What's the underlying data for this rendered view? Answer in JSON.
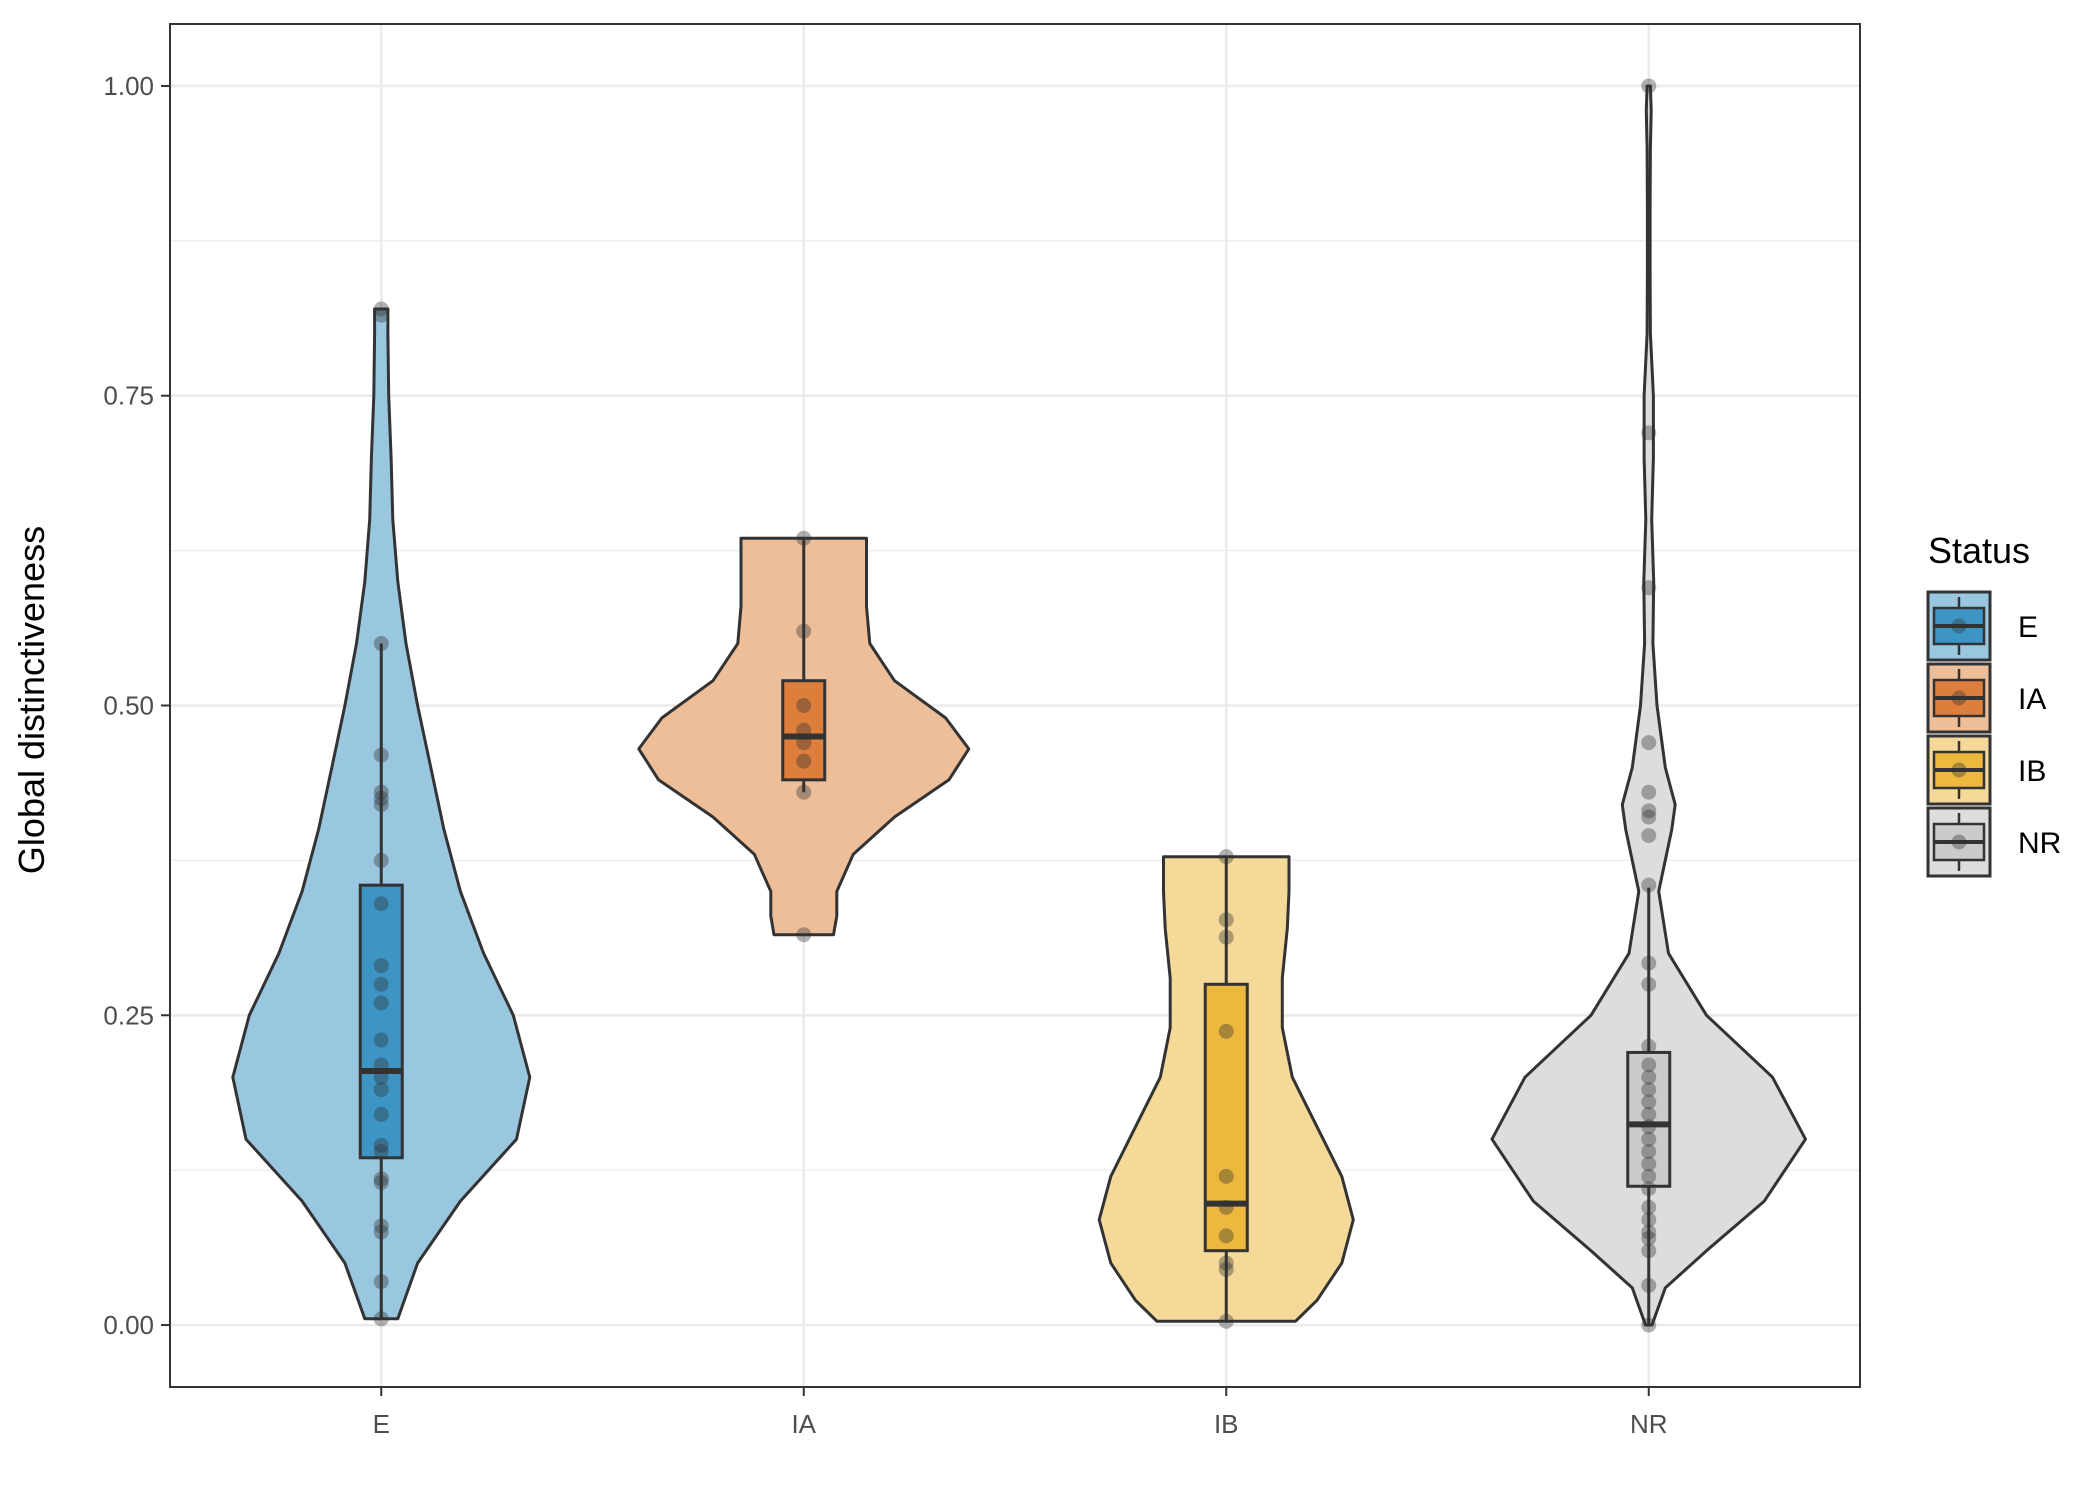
{
  "chart_data": {
    "type": "violin",
    "title": "",
    "xlabel": "",
    "ylabel": "Global distinctiveness",
    "ylim": [
      -0.05,
      1.05
    ],
    "y_ticks": [
      0.0,
      0.25,
      0.5,
      0.75,
      1.0
    ],
    "y_tick_labels": [
      "0.00",
      "0.25",
      "0.50",
      "0.75",
      "1.00"
    ],
    "categories": [
      "E",
      "IA",
      "IB",
      "NR"
    ],
    "grid": true,
    "legend": {
      "title": "Status",
      "placement": "right",
      "entries": [
        "E",
        "IA",
        "IB",
        "NR"
      ]
    },
    "colors": {
      "E": "#0072B2",
      "IA": "#D55E00",
      "IB": "#E69F00",
      "NR": "#999999"
    },
    "violin_fill": {
      "E": "#99C7E0",
      "IA": "#EEBE99",
      "IB": "#F5D999",
      "NR": "#DDDDDD"
    },
    "box_fill": {
      "E": "#3D95C6",
      "IA": "#DE7E3D",
      "IB": "#ECB83D",
      "NR": "#CBCBCB"
    },
    "series": [
      {
        "category": "E",
        "box": {
          "min": 0.005,
          "q1": 0.135,
          "median": 0.205,
          "q3": 0.355,
          "max": 0.55
        },
        "points": [
          0.005,
          0.035,
          0.075,
          0.08,
          0.115,
          0.118,
          0.14,
          0.145,
          0.17,
          0.19,
          0.2,
          0.21,
          0.23,
          0.26,
          0.275,
          0.29,
          0.34,
          0.375,
          0.42,
          0.425,
          0.43,
          0.46,
          0.55,
          0.815,
          0.82
        ],
        "violin": [
          [
            0.005,
            0.1
          ],
          [
            0.05,
            0.22
          ],
          [
            0.1,
            0.48
          ],
          [
            0.15,
            0.82
          ],
          [
            0.2,
            0.9
          ],
          [
            0.25,
            0.8
          ],
          [
            0.3,
            0.62
          ],
          [
            0.35,
            0.48
          ],
          [
            0.4,
            0.38
          ],
          [
            0.45,
            0.3
          ],
          [
            0.5,
            0.22
          ],
          [
            0.55,
            0.15
          ],
          [
            0.6,
            0.1
          ],
          [
            0.65,
            0.07
          ],
          [
            0.7,
            0.06
          ],
          [
            0.75,
            0.045
          ],
          [
            0.8,
            0.04
          ],
          [
            0.82,
            0.04
          ]
        ]
      },
      {
        "category": "IA",
        "box": {
          "min": 0.43,
          "q1": 0.44,
          "median": 0.475,
          "q3": 0.52,
          "max": 0.635
        },
        "points": [
          0.315,
          0.43,
          0.455,
          0.47,
          0.48,
          0.5,
          0.56,
          0.635
        ],
        "violin": [
          [
            0.315,
            0.18
          ],
          [
            0.33,
            0.2
          ],
          [
            0.35,
            0.2
          ],
          [
            0.38,
            0.3
          ],
          [
            0.41,
            0.55
          ],
          [
            0.44,
            0.88
          ],
          [
            0.465,
            1.0
          ],
          [
            0.49,
            0.86
          ],
          [
            0.52,
            0.55
          ],
          [
            0.55,
            0.4
          ],
          [
            0.58,
            0.38
          ],
          [
            0.61,
            0.38
          ],
          [
            0.635,
            0.38
          ]
        ]
      },
      {
        "category": "IB",
        "box": {
          "min": 0.003,
          "q1": 0.06,
          "median": 0.098,
          "q3": 0.275,
          "max": 0.378
        },
        "points": [
          0.003,
          0.045,
          0.05,
          0.072,
          0.095,
          0.12,
          0.237,
          0.313,
          0.327,
          0.378
        ],
        "violin": [
          [
            0.003,
            0.42
          ],
          [
            0.02,
            0.55
          ],
          [
            0.05,
            0.7
          ],
          [
            0.085,
            0.77
          ],
          [
            0.12,
            0.7
          ],
          [
            0.16,
            0.55
          ],
          [
            0.2,
            0.4
          ],
          [
            0.24,
            0.34
          ],
          [
            0.28,
            0.34
          ],
          [
            0.32,
            0.37
          ],
          [
            0.35,
            0.38
          ],
          [
            0.378,
            0.38
          ]
        ]
      },
      {
        "category": "NR",
        "box": {
          "min": 0.0,
          "q1": 0.112,
          "median": 0.162,
          "q3": 0.22,
          "max": 0.353
        },
        "points": [
          0.0,
          0.032,
          0.06,
          0.07,
          0.075,
          0.085,
          0.095,
          0.11,
          0.12,
          0.13,
          0.14,
          0.15,
          0.16,
          0.17,
          0.18,
          0.19,
          0.2,
          0.21,
          0.225,
          0.275,
          0.292,
          0.355,
          0.395,
          0.41,
          0.415,
          0.43,
          0.47,
          0.595,
          0.72,
          1.0
        ],
        "violin": [
          [
            0.0,
            0.02
          ],
          [
            0.03,
            0.1
          ],
          [
            0.06,
            0.35
          ],
          [
            0.1,
            0.7
          ],
          [
            0.15,
            0.95
          ],
          [
            0.2,
            0.75
          ],
          [
            0.25,
            0.35
          ],
          [
            0.3,
            0.12
          ],
          [
            0.35,
            0.06
          ],
          [
            0.4,
            0.14
          ],
          [
            0.42,
            0.16
          ],
          [
            0.45,
            0.1
          ],
          [
            0.5,
            0.05
          ],
          [
            0.55,
            0.025
          ],
          [
            0.6,
            0.03
          ],
          [
            0.65,
            0.018
          ],
          [
            0.7,
            0.028
          ],
          [
            0.75,
            0.028
          ],
          [
            0.8,
            0.01
          ],
          [
            0.85,
            0.008
          ],
          [
            0.9,
            0.008
          ],
          [
            0.95,
            0.01
          ],
          [
            0.98,
            0.015
          ],
          [
            1.0,
            0.01
          ]
        ]
      }
    ]
  }
}
